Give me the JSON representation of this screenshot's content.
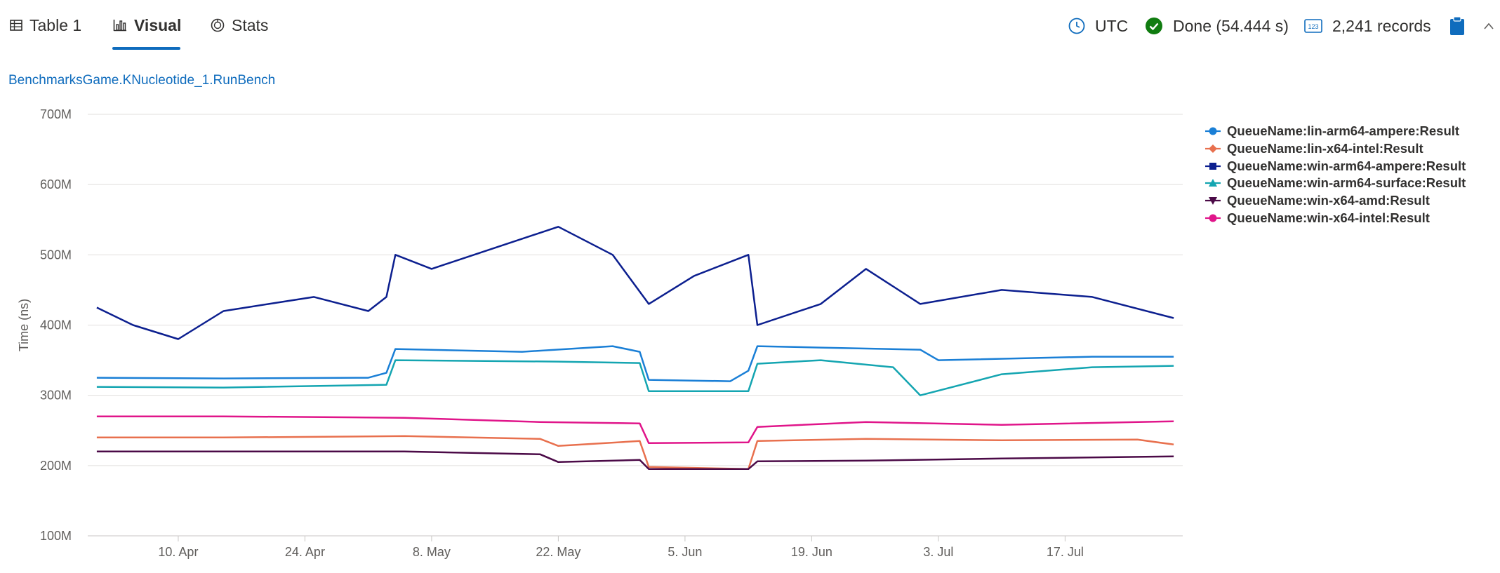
{
  "tabs": [
    {
      "label": "Table 1",
      "icon": "table-icon"
    },
    {
      "label": "Visual",
      "icon": "chart-icon"
    },
    {
      "label": "Stats",
      "icon": "stats-icon"
    }
  ],
  "status": {
    "timezone": "UTC",
    "done": "Done (54.444 s)",
    "records": "2,241 records"
  },
  "colors": {
    "accent": "#0f6cbd",
    "success": "#107c10"
  },
  "chart_data": {
    "type": "line",
    "title": "BenchmarksGame.KNucleotide_1.RunBench",
    "xlabel": "",
    "ylabel": "Time (ns)",
    "ylim": [
      100000000,
      700000000
    ],
    "xlim": [
      "2023-03-31",
      "2023-07-30"
    ],
    "yticks": [
      100000000,
      200000000,
      300000000,
      400000000,
      500000000,
      600000000,
      700000000
    ],
    "ytick_labels": [
      "100M",
      "200M",
      "300M",
      "400M",
      "500M",
      "600M",
      "700M"
    ],
    "xticks": [
      "2023-04-10",
      "2023-04-24",
      "2023-05-08",
      "2023-05-22",
      "2023-06-05",
      "2023-06-19",
      "2023-07-03",
      "2023-07-17"
    ],
    "xtick_labels": [
      "10. Apr",
      "24. Apr",
      "8. May",
      "22. May",
      "5. Jun",
      "19. Jun",
      "3. Jul",
      "17. Jul"
    ],
    "grid": "horizontal",
    "legend_position": "top-right",
    "series": [
      {
        "name": "QueueName:lin-arm64-ampere:Result",
        "color": "#1a7fd6",
        "marker": "circle",
        "points": [
          [
            "2023-04-01",
            325000000
          ],
          [
            "2023-04-15",
            324000000
          ],
          [
            "2023-05-01",
            325000000
          ],
          [
            "2023-05-03",
            332000000
          ],
          [
            "2023-05-04",
            366000000
          ],
          [
            "2023-05-18",
            362000000
          ],
          [
            "2023-05-28",
            370000000
          ],
          [
            "2023-05-31",
            362000000
          ],
          [
            "2023-06-01",
            322000000
          ],
          [
            "2023-06-10",
            320000000
          ],
          [
            "2023-06-12",
            335000000
          ],
          [
            "2023-06-13",
            370000000
          ],
          [
            "2023-06-20",
            368000000
          ],
          [
            "2023-07-01",
            365000000
          ],
          [
            "2023-07-03",
            350000000
          ],
          [
            "2023-07-20",
            355000000
          ],
          [
            "2023-07-29",
            355000000
          ]
        ]
      },
      {
        "name": "QueueName:lin-x64-intel:Result",
        "color": "#e8704e",
        "marker": "diamond",
        "points": [
          [
            "2023-04-01",
            240000000
          ],
          [
            "2023-04-15",
            240000000
          ],
          [
            "2023-05-05",
            242000000
          ],
          [
            "2023-05-20",
            238000000
          ],
          [
            "2023-05-22",
            228000000
          ],
          [
            "2023-05-31",
            235000000
          ],
          [
            "2023-06-01",
            198000000
          ],
          [
            "2023-06-12",
            195000000
          ],
          [
            "2023-06-13",
            235000000
          ],
          [
            "2023-06-25",
            238000000
          ],
          [
            "2023-07-10",
            236000000
          ],
          [
            "2023-07-25",
            237000000
          ],
          [
            "2023-07-29",
            230000000
          ]
        ]
      },
      {
        "name": "QueueName:win-arm64-ampere:Result",
        "color": "#0c1f8f",
        "marker": "square",
        "points": [
          [
            "2023-04-01",
            425000000
          ],
          [
            "2023-04-05",
            400000000
          ],
          [
            "2023-04-10",
            380000000
          ],
          [
            "2023-04-15",
            420000000
          ],
          [
            "2023-04-20",
            430000000
          ],
          [
            "2023-04-25",
            440000000
          ],
          [
            "2023-05-01",
            420000000
          ],
          [
            "2023-05-03",
            440000000
          ],
          [
            "2023-05-04",
            500000000
          ],
          [
            "2023-05-08",
            480000000
          ],
          [
            "2023-05-15",
            510000000
          ],
          [
            "2023-05-22",
            540000000
          ],
          [
            "2023-05-28",
            500000000
          ],
          [
            "2023-06-01",
            430000000
          ],
          [
            "2023-06-06",
            470000000
          ],
          [
            "2023-06-12",
            500000000
          ],
          [
            "2023-06-13",
            400000000
          ],
          [
            "2023-06-20",
            430000000
          ],
          [
            "2023-06-25",
            480000000
          ],
          [
            "2023-07-01",
            430000000
          ],
          [
            "2023-07-10",
            450000000
          ],
          [
            "2023-07-20",
            440000000
          ],
          [
            "2023-07-29",
            410000000
          ]
        ]
      },
      {
        "name": "QueueName:win-arm64-surface:Result",
        "color": "#14a5b1",
        "marker": "triangle",
        "points": [
          [
            "2023-04-01",
            312000000
          ],
          [
            "2023-04-15",
            311000000
          ],
          [
            "2023-05-03",
            315000000
          ],
          [
            "2023-05-04",
            350000000
          ],
          [
            "2023-05-22",
            348000000
          ],
          [
            "2023-05-31",
            346000000
          ],
          [
            "2023-06-01",
            306000000
          ],
          [
            "2023-06-12",
            306000000
          ],
          [
            "2023-06-13",
            345000000
          ],
          [
            "2023-06-20",
            350000000
          ],
          [
            "2023-06-28",
            340000000
          ],
          [
            "2023-07-01",
            300000000
          ],
          [
            "2023-07-10",
            330000000
          ],
          [
            "2023-07-20",
            340000000
          ],
          [
            "2023-07-29",
            342000000
          ]
        ]
      },
      {
        "name": "QueueName:win-x64-amd:Result",
        "color": "#4b0a47",
        "marker": "triangle-down",
        "points": [
          [
            "2023-04-01",
            220000000
          ],
          [
            "2023-04-15",
            220000000
          ],
          [
            "2023-05-05",
            220000000
          ],
          [
            "2023-05-20",
            216000000
          ],
          [
            "2023-05-22",
            205000000
          ],
          [
            "2023-05-31",
            208000000
          ],
          [
            "2023-06-01",
            195000000
          ],
          [
            "2023-06-12",
            195000000
          ],
          [
            "2023-06-13",
            206000000
          ],
          [
            "2023-06-25",
            207000000
          ],
          [
            "2023-07-10",
            210000000
          ],
          [
            "2023-07-29",
            213000000
          ]
        ]
      },
      {
        "name": "QueueName:win-x64-intel:Result",
        "color": "#e0158a",
        "marker": "circle",
        "points": [
          [
            "2023-04-01",
            270000000
          ],
          [
            "2023-04-15",
            270000000
          ],
          [
            "2023-05-05",
            268000000
          ],
          [
            "2023-05-20",
            262000000
          ],
          [
            "2023-05-31",
            260000000
          ],
          [
            "2023-06-01",
            232000000
          ],
          [
            "2023-06-12",
            233000000
          ],
          [
            "2023-06-13",
            255000000
          ],
          [
            "2023-06-25",
            262000000
          ],
          [
            "2023-07-10",
            258000000
          ],
          [
            "2023-07-29",
            263000000
          ]
        ]
      }
    ]
  }
}
